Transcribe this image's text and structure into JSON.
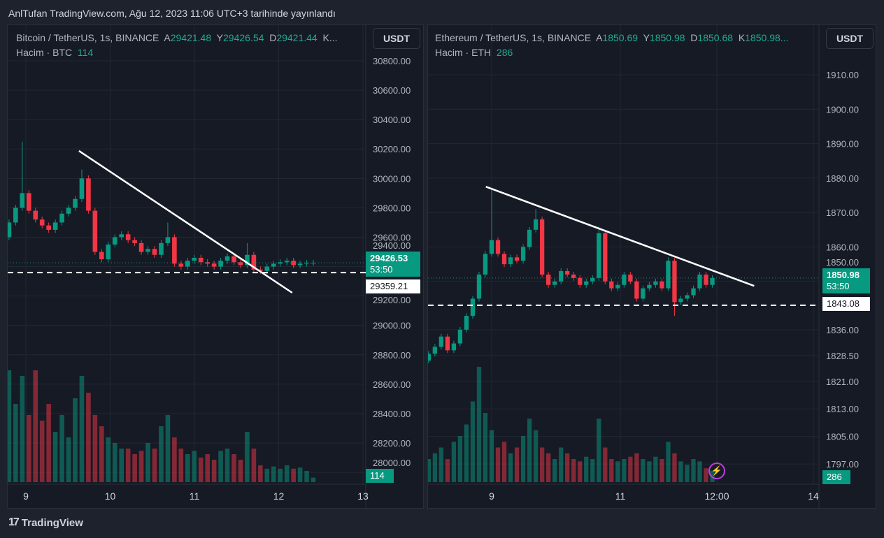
{
  "header": {
    "title": "AnlTufan TradingView.com, Ağu 12, 2023 11:06 UTC+3 tarihinde yayınlandı"
  },
  "footer": {
    "brand": "TradingView",
    "logo_icon": "tradingview-logo-icon"
  },
  "colors": {
    "up": "#089981",
    "down": "#f23645",
    "bg": "#161a25",
    "grid": "#232733",
    "line": "#ffffff"
  },
  "left": {
    "symbol": "Bitcoin / TetherUS, 1s, BINANCE",
    "a_label": "A",
    "a": "29421.48",
    "y_label": "Y",
    "y": "29426.54",
    "d_label": "D",
    "d": "29421.44",
    "k_label": "K...",
    "volume_label": "Hacim · BTC",
    "volume": "114",
    "currency": "USDT",
    "last_price": "29426.53",
    "countdown": "53:50",
    "line_price": "29359.21",
    "volume_badge": "114"
  },
  "right": {
    "symbol": "Ethereum / TetherUS, 1s, BINANCE",
    "a_label": "A",
    "a": "1850.69",
    "y_label": "Y",
    "y": "1850.98",
    "d_label": "D",
    "d": "1850.68",
    "k_label": "K",
    "k": "1850.98...",
    "volume_label": "Hacim · ETH",
    "volume": "286",
    "currency": "USDT",
    "last_price": "1850.98",
    "countdown": "53:50",
    "line_price": "1843.08",
    "volume_badge": "286",
    "alert_icon": "lightning-icon"
  },
  "chart_data": [
    {
      "type": "candlestick",
      "title": "Bitcoin / TetherUS, 1s, BINANCE",
      "y_ticks": [
        "30800.00",
        "30600.00",
        "30400.00",
        "30200.00",
        "30000.00",
        "29800.00",
        "29600.00",
        "29400.00",
        "29200.00",
        "29000.00",
        "28800.00",
        "28600.00",
        "28400.00",
        "28200.00",
        "28000.00"
      ],
      "ylim": [
        28000,
        30800
      ],
      "x_ticks": [
        "9",
        "10",
        "11",
        "12",
        "13"
      ],
      "x_tick_values": [
        9,
        10,
        11,
        12,
        13
      ],
      "x_start": 8.8,
      "x_step": 0.0785,
      "closes": [
        29700,
        29800,
        29900,
        29780,
        29720,
        29680,
        29650,
        29700,
        29760,
        29800,
        29860,
        30000,
        29780,
        29500,
        29450,
        29550,
        29600,
        29620,
        29580,
        29560,
        29500,
        29520,
        29480,
        29560,
        29600,
        29420,
        29400,
        29440,
        29460,
        29430,
        29420,
        29400,
        29440,
        29470,
        29430,
        29410,
        29480,
        29380,
        29370,
        29400,
        29420,
        29430,
        29440,
        29410,
        29420,
        29425,
        29426
      ],
      "highs": {
        "2": 30250,
        "11": 30060,
        "24": 29700,
        "36": 29560
      },
      "volumes": [
        100,
        70,
        95,
        60,
        100,
        55,
        70,
        45,
        60,
        40,
        75,
        95,
        80,
        60,
        50,
        40,
        35,
        30,
        30,
        25,
        28,
        35,
        30,
        50,
        60,
        40,
        30,
        25,
        28,
        22,
        25,
        20,
        28,
        30,
        25,
        20,
        45,
        30,
        15,
        12,
        14,
        12,
        15,
        12,
        13,
        10,
        4
      ],
      "volume_max": 100,
      "trendline": {
        "from": [
          9.63,
          30187
        ],
        "to": [
          12.16,
          29222
        ]
      },
      "horizontal_line": 29359.21
    },
    {
      "type": "candlestick",
      "title": "Ethereum / TetherUS, 1s, BINANCE",
      "y_ticks": [
        "1910.00",
        "1900.00",
        "1890.00",
        "1880.00",
        "1870.00",
        "1860.00",
        "1850.00",
        "1836.00",
        "1828.50",
        "1821.00",
        "1813.00",
        "1805.00",
        "1797.00"
      ],
      "y_tick_values": [
        1910,
        1900,
        1890,
        1880,
        1870,
        1860,
        1850,
        1836,
        1828.5,
        1821,
        1813,
        1805,
        1797
      ],
      "ylim": [
        1795,
        1915
      ],
      "x_ticks": [
        "9",
        "11",
        "12:00",
        "14"
      ],
      "x_tick_values": [
        9,
        11,
        12.5,
        14
      ],
      "x_start": 8.02,
      "x_step": 0.098,
      "closes": [
        1829,
        1831,
        1834,
        1830,
        1832,
        1836,
        1840,
        1845,
        1852,
        1858,
        1862,
        1858,
        1855,
        1857,
        1856,
        1860,
        1865,
        1868,
        1852,
        1849,
        1850,
        1853,
        1852,
        1851,
        1849,
        1850,
        1851,
        1864,
        1850,
        1848,
        1849,
        1852,
        1850,
        1845,
        1848,
        1849,
        1850,
        1848,
        1856,
        1844,
        1845,
        1846,
        1848,
        1852,
        1849,
        1851
      ],
      "highs": {
        "10": 1877,
        "17": 1871,
        "27": 1866,
        "38": 1857
      },
      "lows": {
        "39": 1840
      },
      "volumes": [
        20,
        25,
        30,
        20,
        35,
        40,
        50,
        70,
        100,
        60,
        45,
        30,
        35,
        25,
        30,
        40,
        55,
        45,
        30,
        25,
        20,
        30,
        25,
        20,
        18,
        22,
        20,
        55,
        30,
        20,
        18,
        20,
        22,
        25,
        20,
        18,
        22,
        20,
        35,
        25,
        18,
        15,
        20,
        18,
        12,
        10
      ],
      "volume_max": 100,
      "trendline": {
        "from": [
          8.91,
          1877.5
        ],
        "to": [
          13.08,
          1848.7
        ]
      },
      "horizontal_line": 1843.08
    }
  ]
}
